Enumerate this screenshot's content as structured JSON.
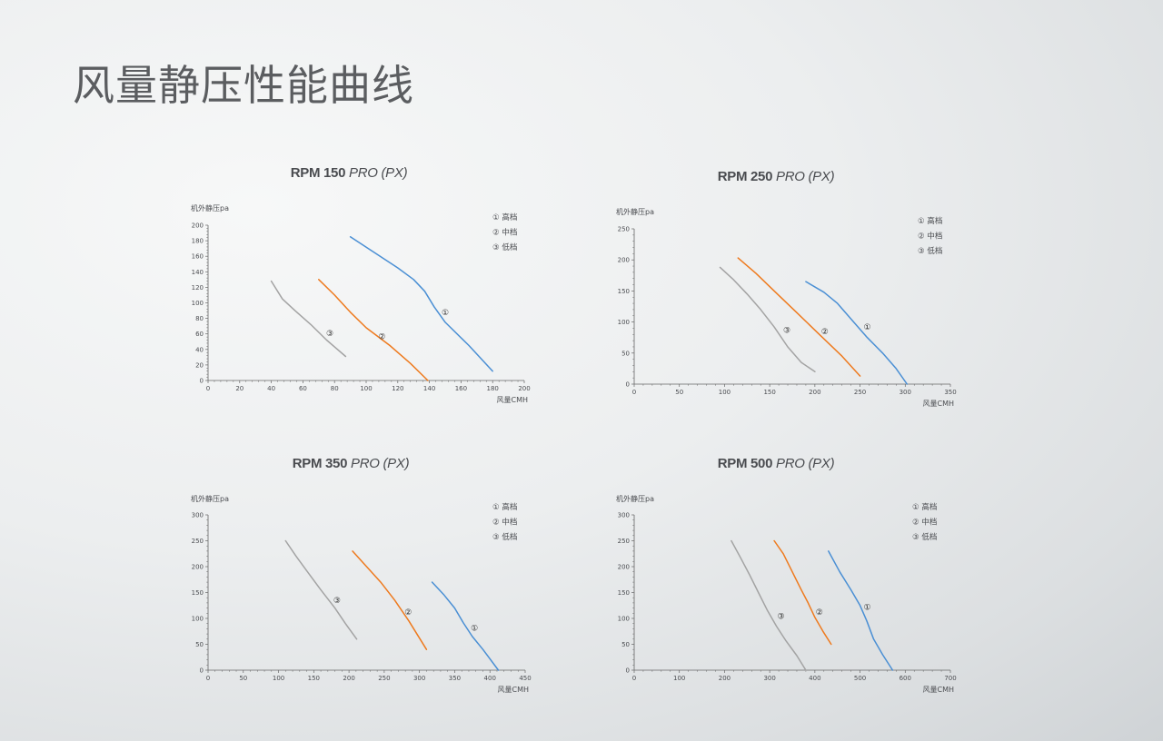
{
  "page": {
    "title": "风量静压性能曲线"
  },
  "legend_markers": [
    "①",
    "②",
    "③"
  ],
  "colors": {
    "high": "#4a8fd4",
    "mid": "#ee7a1e",
    "low": "#a3a3a3",
    "axis": "#666666",
    "text": "#4a4c50"
  },
  "chart_data": [
    {
      "type": "line",
      "title_bold": "RPM 150",
      "title_italic": "PRO (PX)",
      "ylabel": "机外静压pa",
      "xlabel": "风量CMH",
      "xlim": [
        0,
        200
      ],
      "xticks": [
        0,
        20,
        40,
        60,
        80,
        100,
        120,
        140,
        160,
        180,
        200
      ],
      "ylim": [
        0,
        200
      ],
      "yticks": [
        0,
        20,
        40,
        60,
        80,
        100,
        120,
        140,
        160,
        180,
        200
      ],
      "legend": [
        "高档",
        "中档",
        "低档"
      ],
      "series": [
        {
          "name": "高档",
          "marker": "①",
          "color": "#4a8fd4",
          "label_at": [
            150,
            88
          ],
          "x": [
            90,
            105,
            120,
            130,
            137,
            143,
            150,
            165,
            180
          ],
          "y": [
            185,
            165,
            145,
            130,
            115,
            95,
            75,
            45,
            12
          ]
        },
        {
          "name": "中档",
          "marker": "②",
          "color": "#ee7a1e",
          "label_at": [
            110,
            57
          ],
          "x": [
            70,
            80,
            90,
            100,
            115,
            128,
            139
          ],
          "y": [
            130,
            110,
            88,
            68,
            45,
            22,
            0
          ]
        },
        {
          "name": "低档",
          "marker": "③",
          "color": "#a3a3a3",
          "label_at": [
            77,
            61
          ],
          "x": [
            40,
            47,
            55,
            65,
            75,
            87
          ],
          "y": [
            128,
            105,
            90,
            72,
            52,
            31
          ]
        }
      ]
    },
    {
      "type": "line",
      "title_bold": "RPM 250",
      "title_italic": "PRO (PX)",
      "ylabel": "机外静压pa",
      "xlabel": "风量CMH",
      "xlim": [
        0,
        350
      ],
      "xticks": [
        0,
        50,
        100,
        150,
        200,
        250,
        300,
        350
      ],
      "ylim": [
        0,
        250
      ],
      "yticks": [
        0,
        50,
        100,
        150,
        200,
        250
      ],
      "legend": [
        "高档",
        "中档",
        "低档"
      ],
      "series": [
        {
          "name": "高档",
          "marker": "①",
          "color": "#4a8fd4",
          "label_at": [
            258,
            92
          ],
          "x": [
            190,
            210,
            225,
            240,
            258,
            275,
            290,
            302
          ],
          "y": [
            165,
            148,
            130,
            105,
            75,
            50,
            25,
            0
          ]
        },
        {
          "name": "中档",
          "marker": "②",
          "color": "#ee7a1e",
          "label_at": [
            211,
            85
          ],
          "x": [
            115,
            135,
            155,
            180,
            205,
            230,
            250
          ],
          "y": [
            203,
            178,
            150,
            115,
            80,
            45,
            13
          ]
        },
        {
          "name": "低档",
          "marker": "③",
          "color": "#a3a3a3",
          "label_at": [
            169,
            87
          ],
          "x": [
            95,
            110,
            125,
            140,
            155,
            170,
            185,
            200
          ],
          "y": [
            188,
            168,
            145,
            120,
            92,
            60,
            35,
            20
          ]
        }
      ]
    },
    {
      "type": "line",
      "title_bold": "RPM 350",
      "title_italic": "PRO (PX)",
      "ylabel": "机外静压pa",
      "xlabel": "风量CMH",
      "xlim": [
        0,
        450
      ],
      "xticks": [
        0,
        50,
        100,
        150,
        200,
        250,
        300,
        350,
        400,
        450
      ],
      "ylim": [
        0,
        300
      ],
      "yticks": [
        0,
        50,
        100,
        150,
        200,
        250,
        300
      ],
      "legend": [
        "高档",
        "中档",
        "低档"
      ],
      "series": [
        {
          "name": "高档",
          "marker": "①",
          "color": "#4a8fd4",
          "label_at": [
            378,
            82
          ],
          "x": [
            318,
            335,
            350,
            362,
            375,
            390,
            412
          ],
          "y": [
            170,
            145,
            120,
            92,
            65,
            40,
            0
          ]
        },
        {
          "name": "中档",
          "marker": "②",
          "color": "#ee7a1e",
          "label_at": [
            284,
            112
          ],
          "x": [
            205,
            225,
            245,
            265,
            285,
            310
          ],
          "y": [
            230,
            200,
            170,
            135,
            95,
            40
          ]
        },
        {
          "name": "低档",
          "marker": "③",
          "color": "#a3a3a3",
          "label_at": [
            183,
            135
          ],
          "x": [
            110,
            125,
            140,
            160,
            180,
            195,
            211
          ],
          "y": [
            250,
            220,
            192,
            155,
            120,
            90,
            60
          ]
        }
      ]
    },
    {
      "type": "line",
      "title_bold": "RPM 500",
      "title_italic": "PRO (PX)",
      "ylabel": "机外静压pa",
      "xlabel": "风量CMH",
      "xlim": [
        0,
        700
      ],
      "xticks": [
        0,
        100,
        200,
        300,
        400,
        500,
        600,
        700
      ],
      "ylim": [
        0,
        300
      ],
      "yticks": [
        0,
        50,
        100,
        150,
        200,
        250,
        300
      ],
      "legend": [
        "高档",
        "中档",
        "低档"
      ],
      "series": [
        {
          "name": "高档",
          "marker": "①",
          "color": "#4a8fd4",
          "label_at": [
            516,
            122
          ],
          "x": [
            430,
            455,
            480,
            500,
            515,
            530,
            550,
            572
          ],
          "y": [
            230,
            190,
            155,
            125,
            95,
            60,
            30,
            0
          ]
        },
        {
          "name": "中档",
          "marker": "②",
          "color": "#ee7a1e",
          "label_at": [
            410,
            112
          ],
          "x": [
            310,
            330,
            350,
            370,
            385,
            400,
            418,
            436
          ],
          "y": [
            250,
            225,
            190,
            155,
            130,
            102,
            75,
            50
          ]
        },
        {
          "name": "低档",
          "marker": "③",
          "color": "#a3a3a3",
          "label_at": [
            325,
            104
          ],
          "x": [
            215,
            235,
            255,
            275,
            295,
            315,
            335,
            360,
            380
          ],
          "y": [
            250,
            218,
            185,
            150,
            115,
            85,
            58,
            28,
            0
          ]
        }
      ]
    }
  ]
}
